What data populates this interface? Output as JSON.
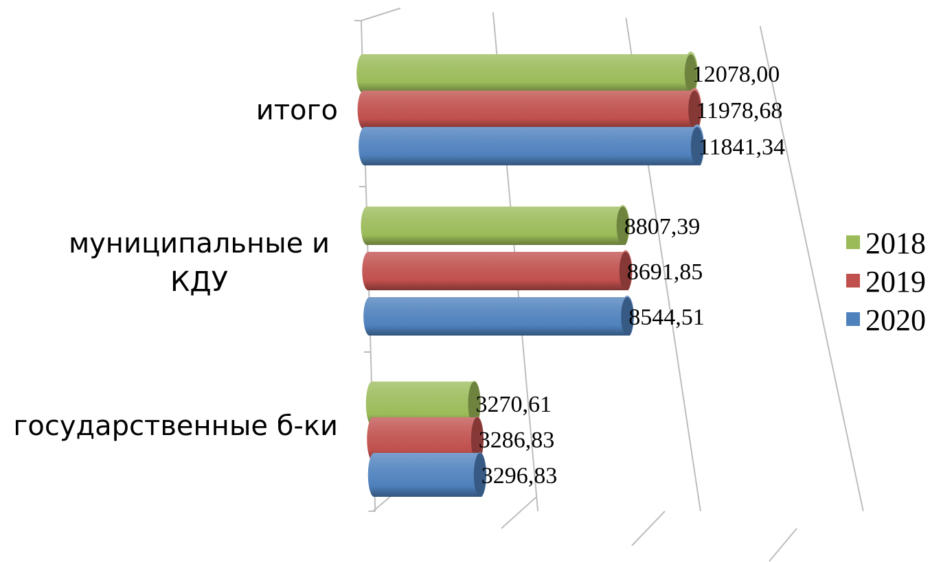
{
  "chart_data": {
    "type": "bar",
    "orientation": "horizontal",
    "style": "3d-cylinder",
    "title": "",
    "xlabel": "",
    "ylabel": "",
    "categories": [
      "государственные б-ки",
      "муниципальные  и КДУ",
      "итого"
    ],
    "category_lines": [
      [
        "государственные б-ки"
      ],
      [
        "муниципальные  и",
        "КДУ"
      ],
      [
        "итого"
      ]
    ],
    "series": [
      {
        "name": "2018",
        "color": "#9bbb59",
        "values": [
          3270.61,
          8807.39,
          12078.0
        ],
        "labels": [
          "3270,61",
          "8807,39",
          "12078,00"
        ]
      },
      {
        "name": "2019",
        "color": "#c0504d",
        "values": [
          3286.83,
          8691.85,
          11978.68
        ],
        "labels": [
          "3286,83",
          "8691,85",
          "11978,68"
        ]
      },
      {
        "name": "2020",
        "color": "#4f81bd",
        "values": [
          3296.83,
          8544.51,
          11841.34
        ],
        "labels": [
          "3296,83",
          "8544,51",
          "11841,34"
        ]
      }
    ],
    "xlim": [
      0,
      15000
    ],
    "grid": true,
    "legend": "right"
  }
}
